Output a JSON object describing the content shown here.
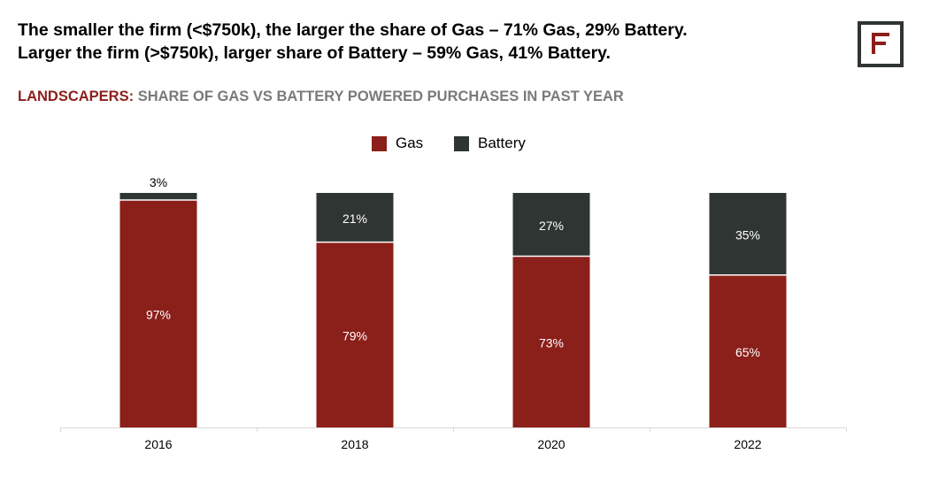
{
  "headline": {
    "line1": "The smaller the firm (<$750k), the larger the share of Gas – 71% Gas, 29% Battery.",
    "line2": "Larger the firm (>$750k), larger share of Battery – 59% Gas, 41% Battery."
  },
  "subtitle": {
    "lead": "LANDSCAPERS:",
    "rest": "SHARE OF GAS VS BATTERY POWERED PURCHASES IN PAST YEAR"
  },
  "logo": {
    "icon": "brand-f-logo-icon",
    "border_color": "#2f3533",
    "mark_color": "#8b1f1a"
  },
  "colors": {
    "gas": "#8b1f1a",
    "battery": "#2f3533",
    "axis": "#d9d9d9"
  },
  "chart_data": {
    "type": "bar",
    "stacked": true,
    "categories": [
      "2016",
      "2018",
      "2020",
      "2022"
    ],
    "series": [
      {
        "name": "Gas",
        "values": [
          97,
          79,
          73,
          65
        ],
        "labels": [
          "97%",
          "79%",
          "73%",
          "65%"
        ]
      },
      {
        "name": "Battery",
        "values": [
          3,
          21,
          27,
          35
        ],
        "labels": [
          "3%",
          "21%",
          "27%",
          "35%"
        ]
      }
    ],
    "ylim": [
      0,
      100
    ],
    "legend": "top-center",
    "grid": false
  }
}
